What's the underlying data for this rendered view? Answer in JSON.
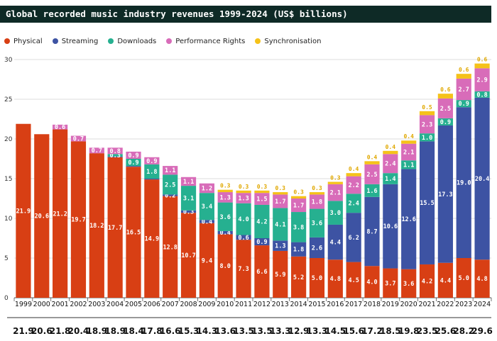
{
  "title": "Global recorded music industry revenues 1999-2024 (US$ billions)",
  "legend": [
    {
      "name": "Physical",
      "color": "#d83f14"
    },
    {
      "name": "Streaming",
      "color": "#3d53a3"
    },
    {
      "name": "Downloads",
      "color": "#26b090"
    },
    {
      "name": "Performance Rights",
      "color": "#d86cb9"
    },
    {
      "name": "Synchronisation",
      "color": "#f5c219"
    }
  ],
  "chart_data": {
    "type": "bar",
    "stacked": true,
    "title": "Global recorded music industry revenues 1999-2024 (US$ billions)",
    "ylim": [
      0,
      30
    ],
    "yticks": [
      0,
      5,
      10,
      15,
      20,
      25,
      30
    ],
    "grid": true,
    "legend_position": "top-left",
    "categories": [
      "1999",
      "2000",
      "2001",
      "2002",
      "2003",
      "2004",
      "2005",
      "2006",
      "2007",
      "2008",
      "2009",
      "2010",
      "2011",
      "2012",
      "2013",
      "2014",
      "2015",
      "2016",
      "2017",
      "2018",
      "2019",
      "2020",
      "2021",
      "2022",
      "2023",
      "2024"
    ],
    "series": [
      {
        "name": "Physical",
        "color": "#d83f14",
        "values": [
          21.9,
          20.6,
          21.2,
          19.7,
          18.2,
          17.7,
          16.5,
          14.9,
          12.8,
          10.7,
          9.4,
          8.0,
          7.3,
          6.6,
          5.9,
          5.2,
          5.0,
          4.8,
          4.5,
          4.0,
          3.7,
          3.6,
          4.2,
          4.4,
          5.0,
          4.8
        ],
        "labels": [
          "21.9",
          "20.6",
          "21.2",
          "19.7",
          "18.2",
          "17.7",
          "16.5",
          "14.9",
          "12.8",
          "10.7",
          "9.4",
          "8.0",
          "7.3",
          "6.6",
          "5.9",
          "5.2",
          "5.0",
          "4.8",
          "4.5",
          "4.0",
          "3.7",
          "3.6",
          "4.2",
          "4.4",
          "5.0",
          "4.8"
        ]
      },
      {
        "name": "Streaming",
        "color": "#3d53a3",
        "values": [
          0,
          0,
          0,
          0,
          0,
          0.1,
          0.1,
          0.1,
          0.2,
          0.3,
          0.4,
          0.4,
          0.6,
          0.9,
          1.3,
          1.8,
          2.6,
          4.4,
          6.2,
          8.7,
          10.6,
          12.6,
          15.5,
          17.3,
          19.0,
          20.4
        ],
        "labels": [
          "",
          "",
          "",
          "",
          "",
          "",
          "",
          "",
          "0.2",
          "0.3",
          "0.4",
          "0.4",
          "0.6",
          "0.9",
          "1.3",
          "1.8",
          "2.6",
          "4.4",
          "6.2",
          "8.7",
          "10.6",
          "12.6",
          "15.5",
          "17.3",
          "19.0",
          "20.4"
        ]
      },
      {
        "name": "Downloads",
        "color": "#26b090",
        "values": [
          0,
          0,
          0,
          0,
          0,
          0.3,
          0.9,
          1.8,
          2.5,
          3.1,
          3.4,
          3.6,
          4.0,
          4.2,
          4.1,
          3.8,
          3.6,
          3.0,
          2.4,
          1.6,
          1.4,
          1.1,
          1.0,
          0.9,
          0.9,
          0.8
        ],
        "labels": [
          "",
          "",
          "",
          "",
          "",
          "0.3",
          "0.9",
          "1.8",
          "2.5",
          "3.1",
          "3.4",
          "3.6",
          "4.0",
          "4.2",
          "4.1",
          "3.8",
          "3.6",
          "3.0",
          "2.4",
          "1.6",
          "1.4",
          "1.1",
          "1.0",
          "0.9",
          "0.9",
          "0.8"
        ]
      },
      {
        "name": "Performance Rights",
        "color": "#d86cb9",
        "values": [
          0,
          0,
          0.6,
          0.7,
          0.7,
          0.8,
          0.9,
          0.9,
          1.1,
          1.1,
          1.2,
          1.3,
          1.3,
          1.5,
          1.7,
          1.7,
          1.8,
          2.1,
          2.2,
          2.5,
          2.4,
          2.1,
          2.3,
          2.5,
          2.7,
          2.9
        ],
        "labels": [
          "",
          "",
          "0.6",
          "0.7",
          "0.7",
          "0.8",
          "0.9",
          "0.9",
          "1.1",
          "1.1",
          "1.2",
          "1.3",
          "1.3",
          "1.5",
          "1.7",
          "1.7",
          "1.8",
          "2.1",
          "2.2",
          "2.5",
          "2.4",
          "2.1",
          "2.3",
          "2.5",
          "2.7",
          "2.9"
        ]
      },
      {
        "name": "Synchronisation",
        "color": "#f5c219",
        "values": [
          0,
          0,
          0,
          0,
          0,
          0,
          0,
          0,
          0,
          0,
          0,
          0.3,
          0.3,
          0.3,
          0.3,
          0.3,
          0.3,
          0.3,
          0.4,
          0.4,
          0.4,
          0.4,
          0.5,
          0.6,
          0.6,
          0.6
        ],
        "labels": [
          "",
          "",
          "",
          "",
          "",
          "",
          "",
          "",
          "",
          "",
          "",
          "0.3",
          "0.3",
          "0.3",
          "0.3",
          "0.3",
          "0.3",
          "0.3",
          "0.4",
          "0.4",
          "0.4",
          "0.4",
          "0.5",
          "0.6",
          "0.6",
          "0.6"
        ]
      }
    ],
    "totals": [
      "21.9",
      "20.6",
      "21.8",
      "20.4",
      "18.9",
      "18.9",
      "18.4",
      "17.8",
      "16.6",
      "15.3",
      "14.3",
      "13.6",
      "13.5",
      "13.5",
      "13.3",
      "12.9",
      "13.3",
      "14.5",
      "15.6",
      "17.2",
      "18.5",
      "19.8",
      "23.5",
      "25.6",
      "28.2",
      "29.6"
    ]
  }
}
